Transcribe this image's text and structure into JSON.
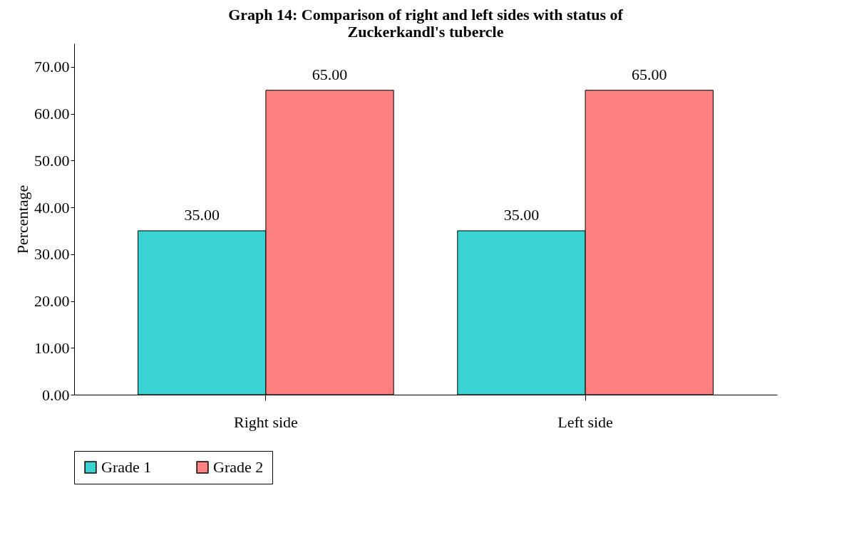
{
  "chart_data": {
    "type": "bar",
    "title": "Graph 14: Comparison of right and left sides with status of\nZuckerkandl's tubercle",
    "ylabel": "Percentage",
    "categories": [
      "Right side",
      "Left side"
    ],
    "series": [
      {
        "name": "Grade 1",
        "color": "#3ad3d3",
        "values": [
          35,
          35
        ],
        "value_labels": [
          "35.00",
          "35.00"
        ]
      },
      {
        "name": "Grade 2",
        "color": "#ff8080",
        "values": [
          65,
          65
        ],
        "value_labels": [
          "65.00",
          "65.00"
        ]
      }
    ],
    "ylim": [
      0,
      75
    ],
    "yticks": [
      {
        "value": 0,
        "label": "0.00"
      },
      {
        "value": 10,
        "label": "10.00"
      },
      {
        "value": 20,
        "label": "20.00"
      },
      {
        "value": 30,
        "label": "30.00"
      },
      {
        "value": 40,
        "label": "40.00"
      },
      {
        "value": 50,
        "label": "50.00"
      },
      {
        "value": 60,
        "label": "60.00"
      },
      {
        "value": 70,
        "label": "70.00"
      }
    ],
    "grid": false,
    "legend": "bottom"
  }
}
